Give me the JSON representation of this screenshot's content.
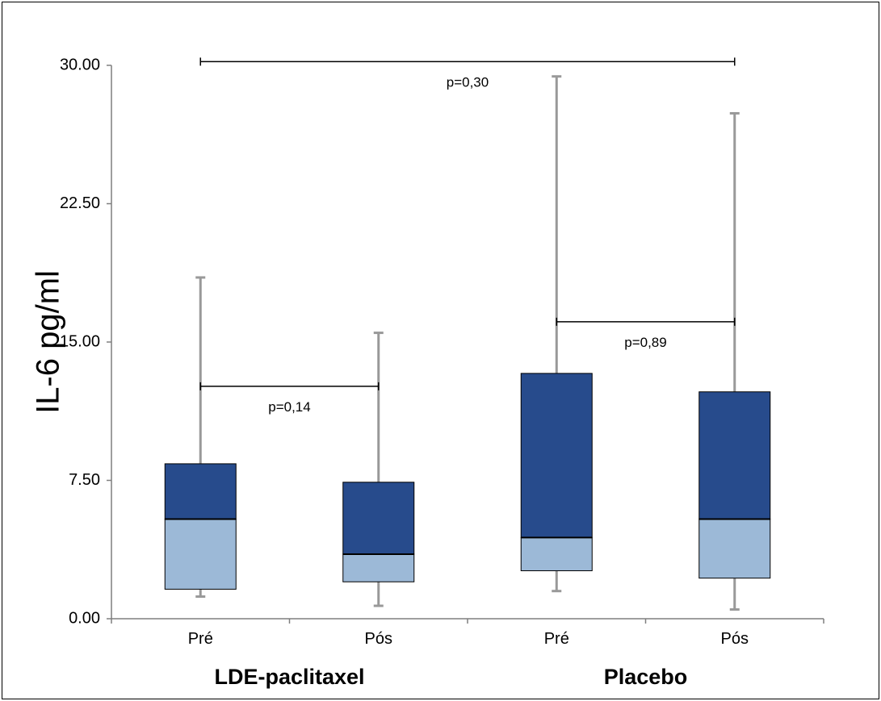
{
  "chart_data": {
    "type": "box",
    "ylabel": "IL-6 pg/ml",
    "ylim": [
      0,
      30
    ],
    "yticks": [
      "0.00",
      "7.50",
      "15.00",
      "22.50",
      "30.00"
    ],
    "ytick_values": [
      0,
      7.5,
      15,
      22.5,
      30
    ],
    "groups": [
      "LDE-paclitaxel",
      "Placebo"
    ],
    "boxes": [
      {
        "group": "LDE-paclitaxel",
        "label": "Pré",
        "min": 1.2,
        "q1": 1.6,
        "median": 5.4,
        "q3": 8.4,
        "max": 18.5
      },
      {
        "group": "LDE-paclitaxel",
        "label": "Pós",
        "min": 0.7,
        "q1": 2.0,
        "median": 3.5,
        "q3": 7.4,
        "max": 15.5
      },
      {
        "group": "Placebo",
        "label": "Pré",
        "min": 1.5,
        "q1": 2.6,
        "median": 4.4,
        "q3": 13.3,
        "max": 29.4
      },
      {
        "group": "Placebo",
        "label": "Pós",
        "min": 0.5,
        "q1": 2.2,
        "median": 5.4,
        "q3": 12.3,
        "max": 27.4
      }
    ],
    "comparisons": [
      {
        "label": "p=0,30",
        "from_box": 0,
        "to_box": 3,
        "y": 30.2
      },
      {
        "label": "p=0,14",
        "from_box": 0,
        "to_box": 1,
        "y": 12.6
      },
      {
        "label": "p=0,89",
        "from_box": 2,
        "to_box": 3,
        "y": 16.1
      }
    ],
    "colors": {
      "upper_box": "#274b8c",
      "lower_box": "#9cb9d7",
      "whisker": "#999999",
      "axis": "#7f7f7f"
    },
    "grid": false
  }
}
